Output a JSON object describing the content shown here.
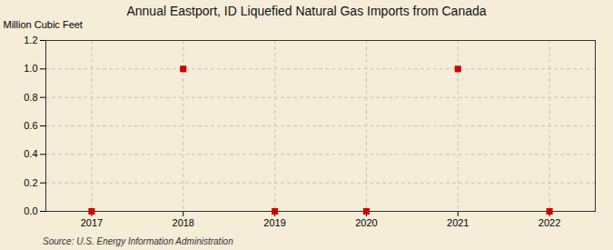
{
  "chart_data": {
    "type": "scatter",
    "title": "Annual Eastport, ID Liquefied Natural Gas Imports from Canada",
    "ylabel": "Million Cubic Feet",
    "annotations": [
      "Source: U.S. Energy Information Administration"
    ],
    "x": [
      2017,
      2018,
      2019,
      2020,
      2021,
      2022
    ],
    "values": [
      0,
      1,
      0,
      0,
      1,
      0
    ],
    "color": "#cc0000",
    "marker": "square",
    "xlim": [
      2016.5,
      2022.5
    ],
    "xticks": [
      2017,
      2018,
      2019,
      2020,
      2021,
      2022
    ],
    "ylim": [
      0,
      1.2
    ],
    "yticks": [
      {
        "value": 0,
        "label": "0.0"
      },
      0.2,
      0.4,
      0.6,
      0.8,
      {
        "value": 1,
        "label": "1.0"
      },
      1.2
    ],
    "grid": true
  }
}
